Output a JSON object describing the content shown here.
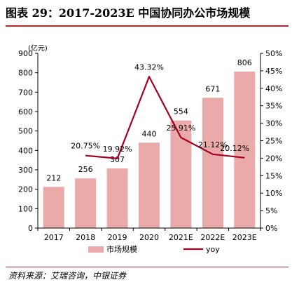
{
  "title": "图表 29：2017-2023E 中国协同办公市场规模",
  "source": "资料来源：艾瑞咨询，中银证券",
  "chart_data": {
    "type": "bar",
    "categories": [
      "2017",
      "2018",
      "2019",
      "2020",
      "2021E",
      "2022E",
      "2023E"
    ],
    "series": [
      {
        "name": "市场规模",
        "type": "bar",
        "axis": "left",
        "values": [
          212,
          256,
          307,
          440,
          554,
          671,
          806
        ],
        "labels": [
          "212",
          "256",
          "307",
          "440",
          "554",
          "671",
          "806"
        ],
        "color": "#eaaaaa"
      },
      {
        "name": "yoy",
        "type": "line",
        "axis": "right",
        "values": [
          null,
          20.75,
          19.92,
          43.32,
          25.91,
          21.12,
          20.12
        ],
        "labels": [
          "",
          "20.75%",
          "19.92%",
          "43.32%",
          "25.91%",
          "21.12%",
          "20.12%"
        ],
        "color": "#a50021"
      }
    ],
    "ylabel_left": "(亿元)",
    "ylim_left": [
      0,
      900
    ],
    "yticks_left": [
      "0",
      "100",
      "200",
      "300",
      "400",
      "500",
      "600",
      "700",
      "800",
      "900"
    ],
    "ylim_right": [
      0,
      50
    ],
    "yticks_right": [
      "0%",
      "5%",
      "10%",
      "15%",
      "20%",
      "25%",
      "30%",
      "35%",
      "40%",
      "45%",
      "50%"
    ],
    "grid": false,
    "legend": "bottom"
  }
}
